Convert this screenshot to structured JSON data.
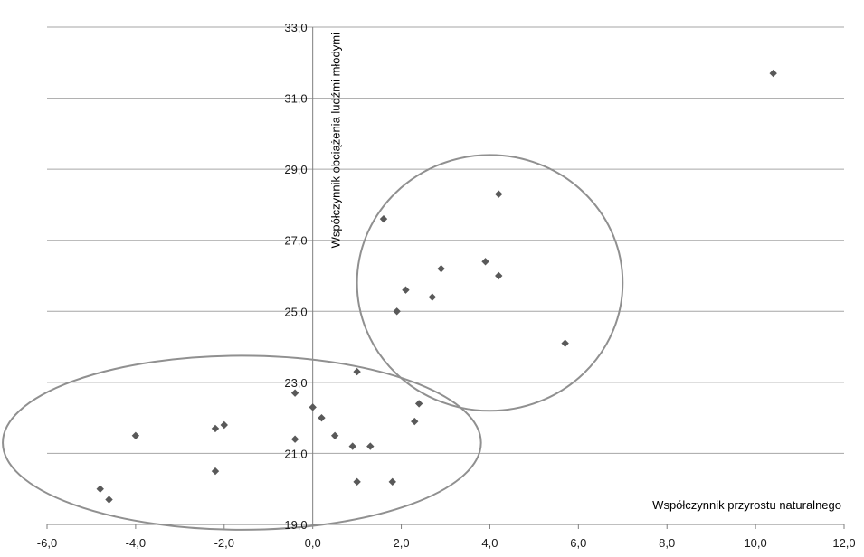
{
  "chart_data": {
    "type": "scatter",
    "xlabel": "Współczynnik przyrostu naturalnego",
    "ylabel": "Współczynnik obciążenia ludźmi młodymi",
    "xlim": [
      -6.0,
      12.0
    ],
    "ylim": [
      19.0,
      33.0
    ],
    "x_ticks": [
      "-6,0",
      "-4,0",
      "-2,0",
      "0,0",
      "2,0",
      "4,0",
      "6,0",
      "8,0",
      "10,0",
      "12,0"
    ],
    "y_ticks": [
      "19,0",
      "21,0",
      "23,0",
      "25,0",
      "27,0",
      "29,0",
      "31,0",
      "33,0"
    ],
    "grid": "horizontal",
    "marker_color": "#595959",
    "grid_color": "#a6a6a6",
    "ellipse_color": "#909090",
    "points": [
      {
        "x": -4.8,
        "y": 20.0
      },
      {
        "x": -4.6,
        "y": 19.7
      },
      {
        "x": -4.0,
        "y": 21.5
      },
      {
        "x": -2.2,
        "y": 21.7
      },
      {
        "x": -2.0,
        "y": 21.8
      },
      {
        "x": -2.2,
        "y": 20.5
      },
      {
        "x": -0.4,
        "y": 22.7
      },
      {
        "x": -0.4,
        "y": 21.4
      },
      {
        "x": 0.0,
        "y": 22.3
      },
      {
        "x": 0.2,
        "y": 22.0
      },
      {
        "x": 0.5,
        "y": 21.5
      },
      {
        "x": 0.9,
        "y": 21.2
      },
      {
        "x": 1.0,
        "y": 23.3
      },
      {
        "x": 1.0,
        "y": 20.2
      },
      {
        "x": 1.3,
        "y": 21.2
      },
      {
        "x": 1.8,
        "y": 20.2
      },
      {
        "x": 2.3,
        "y": 21.9
      },
      {
        "x": 2.4,
        "y": 22.4
      },
      {
        "x": 1.6,
        "y": 27.6
      },
      {
        "x": 1.9,
        "y": 25.0
      },
      {
        "x": 2.1,
        "y": 25.6
      },
      {
        "x": 2.7,
        "y": 25.4
      },
      {
        "x": 2.9,
        "y": 26.2
      },
      {
        "x": 3.9,
        "y": 26.4
      },
      {
        "x": 4.2,
        "y": 26.0
      },
      {
        "x": 4.2,
        "y": 28.3
      },
      {
        "x": 5.7,
        "y": 24.1
      },
      {
        "x": 10.4,
        "y": 31.7
      }
    ],
    "ellipses": [
      {
        "cx": -1.6,
        "cy": 21.3,
        "rx": 5.4,
        "ry": 2.45
      },
      {
        "cx": 4.0,
        "cy": 25.8,
        "rx": 3.0,
        "ry": 3.6
      }
    ]
  }
}
